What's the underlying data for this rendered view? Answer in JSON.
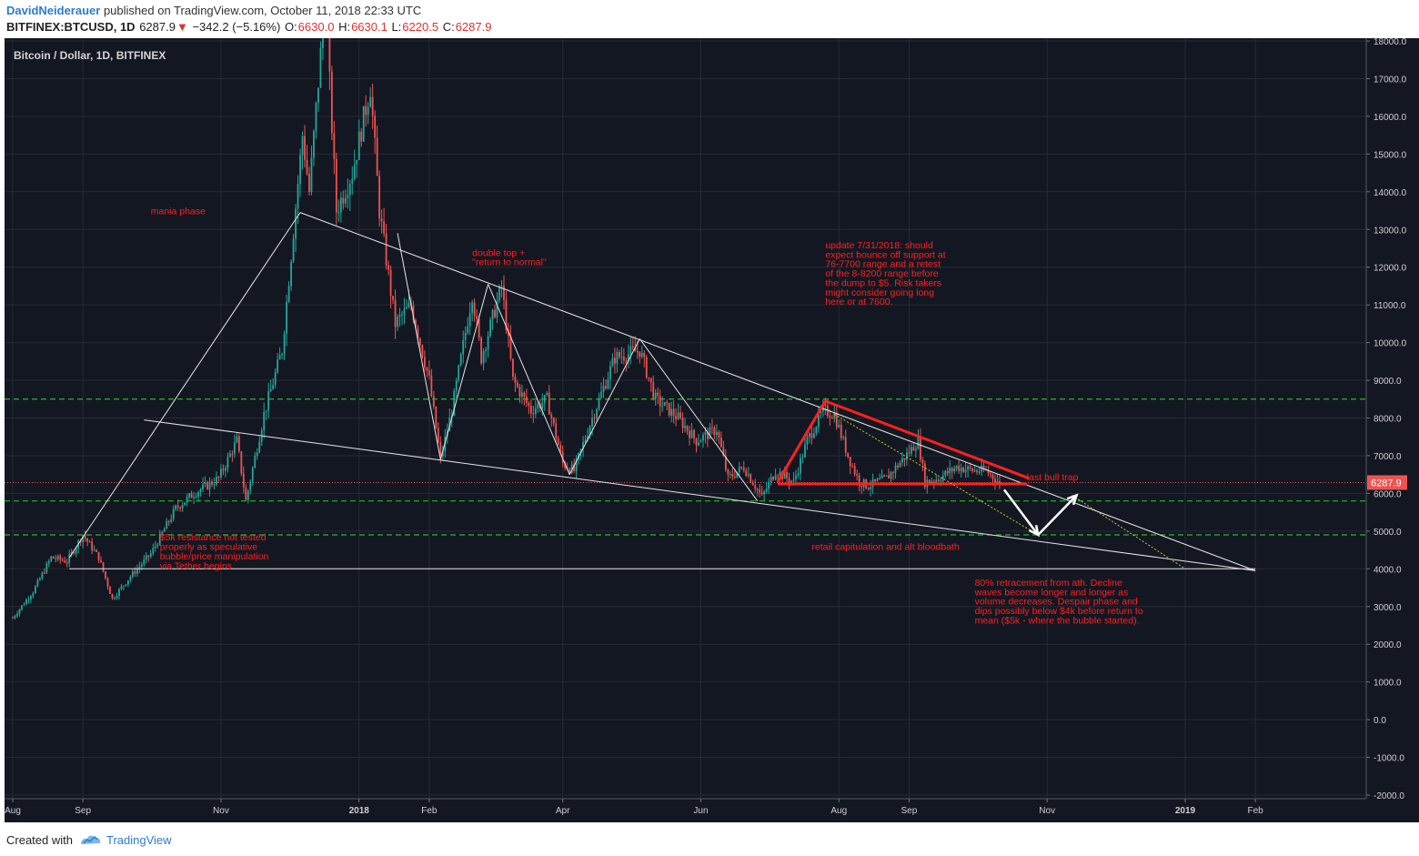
{
  "header": {
    "publisher": "DavidNeiderauer",
    "published_text": "published on TradingView.com, October 11, 2018 22:33 UTC",
    "symbol": "BITFINEX:BTCUSD, 1D",
    "last": "6287.9",
    "change": "−342.2 (−5.16%)",
    "o_label": "O:",
    "o_value": "6630.0",
    "h_label": "H:",
    "h_value": "6630.1",
    "l_label": "L:",
    "l_value": "6220.5",
    "c_label": "C:",
    "c_value": "6287.9"
  },
  "footer": {
    "created_with": "Created with",
    "brand": "TradingView"
  },
  "colors": {
    "background": "#131722",
    "candle_up": "#26a69a",
    "candle_down": "#ef5350",
    "annotation": "#ff2020",
    "support_line": "#22bb22",
    "trend_line": "#e6e6e6",
    "axis_text": "#d0d0d0"
  },
  "chart_data": {
    "type": "candlestick",
    "title": "Bitcoin / Dollar, 1D, BITFINEX",
    "ylim": [
      -2000,
      18000
    ],
    "y_ticks": [
      "18000.0",
      "17000.0",
      "16000.0",
      "15000.0",
      "14000.0",
      "13000.0",
      "12000.0",
      "11000.0",
      "10000.0",
      "9000.0",
      "8000.0",
      "7000.0",
      "6000.0",
      "5000.0",
      "4000.0",
      "3000.0",
      "2000.0",
      "1000.0",
      "0.0",
      "-1000.0",
      "-2000.0"
    ],
    "x_ticks": [
      {
        "label": "Aug",
        "date": "2017-08-01"
      },
      {
        "label": "Sep",
        "date": "2017-09-01"
      },
      {
        "label": "Nov",
        "date": "2017-11-01"
      },
      {
        "label": "2018",
        "date": "2018-01-01"
      },
      {
        "label": "Feb",
        "date": "2018-02-01"
      },
      {
        "label": "Apr",
        "date": "2018-04-01"
      },
      {
        "label": "Jun",
        "date": "2018-06-01"
      },
      {
        "label": "Aug",
        "date": "2018-08-01"
      },
      {
        "label": "Sep",
        "date": "2018-09-01"
      },
      {
        "label": "Nov",
        "date": "2018-11-01"
      },
      {
        "label": "2019",
        "date": "2019-01-01"
      },
      {
        "label": "Feb",
        "date": "2019-02-01"
      }
    ],
    "last_price": "6287.9",
    "price_path": [
      [
        "2017-08-01",
        2700
      ],
      [
        "2017-08-10",
        3400
      ],
      [
        "2017-08-18",
        4300
      ],
      [
        "2017-08-25",
        4200
      ],
      [
        "2017-09-01",
        4900
      ],
      [
        "2017-09-08",
        4300
      ],
      [
        "2017-09-14",
        3200
      ],
      [
        "2017-09-22",
        3800
      ],
      [
        "2017-10-01",
        4400
      ],
      [
        "2017-10-12",
        5600
      ],
      [
        "2017-10-20",
        6000
      ],
      [
        "2017-10-31",
        6400
      ],
      [
        "2017-11-08",
        7400
      ],
      [
        "2017-11-12",
        5800
      ],
      [
        "2017-11-20",
        8100
      ],
      [
        "2017-11-28",
        9800
      ],
      [
        "2017-12-07",
        15500
      ],
      [
        "2017-12-10",
        14000
      ],
      [
        "2017-12-17",
        19100
      ],
      [
        "2017-12-22",
        13500
      ],
      [
        "2017-12-29",
        14500
      ],
      [
        "2018-01-06",
        16800
      ],
      [
        "2018-01-10",
        13500
      ],
      [
        "2018-01-17",
        10500
      ],
      [
        "2018-01-24",
        11000
      ],
      [
        "2018-02-01",
        9000
      ],
      [
        "2018-02-06",
        6900
      ],
      [
        "2018-02-11",
        8200
      ],
      [
        "2018-02-20",
        11300
      ],
      [
        "2018-02-24",
        9600
      ],
      [
        "2018-03-05",
        11500
      ],
      [
        "2018-03-10",
        9000
      ],
      [
        "2018-03-18",
        8200
      ],
      [
        "2018-03-25",
        8500
      ],
      [
        "2018-04-01",
        6800
      ],
      [
        "2018-04-06",
        6600
      ],
      [
        "2018-04-14",
        8000
      ],
      [
        "2018-04-24",
        9600
      ],
      [
        "2018-05-05",
        9800
      ],
      [
        "2018-05-12",
        8500
      ],
      [
        "2018-05-22",
        8000
      ],
      [
        "2018-05-30",
        7400
      ],
      [
        "2018-06-08",
        7700
      ],
      [
        "2018-06-13",
        6400
      ],
      [
        "2018-06-20",
        6700
      ],
      [
        "2018-06-28",
        5900
      ],
      [
        "2018-07-04",
        6600
      ],
      [
        "2018-07-12",
        6300
      ],
      [
        "2018-07-18",
        7400
      ],
      [
        "2018-07-25",
        8200
      ],
      [
        "2018-07-30",
        8100
      ],
      [
        "2018-08-05",
        7000
      ],
      [
        "2018-08-10",
        6300
      ],
      [
        "2018-08-14",
        6200
      ],
      [
        "2018-08-22",
        6400
      ],
      [
        "2018-09-01",
        7100
      ],
      [
        "2018-09-05",
        7400
      ],
      [
        "2018-09-08",
        6300
      ],
      [
        "2018-09-14",
        6400
      ],
      [
        "2018-09-22",
        6700
      ],
      [
        "2018-09-30",
        6600
      ],
      [
        "2018-10-05",
        6600
      ],
      [
        "2018-10-11",
        6287.9
      ]
    ],
    "horizontal_lines": [
      {
        "value": 8500,
        "style": "dashed",
        "color": "green"
      },
      {
        "value": 5800,
        "style": "dashed",
        "color": "green"
      },
      {
        "value": 4900,
        "style": "dashed",
        "color": "green"
      },
      {
        "value": 6287.9,
        "style": "dotted",
        "color": "red",
        "label": "last price"
      }
    ],
    "annotations": [
      {
        "text": "mania phase",
        "date": "2017-10-01",
        "price": 13400
      },
      {
        "text": "double top +",
        "date": "2018-02-20",
        "price": 12300
      },
      {
        "text": "\"return to normal\"",
        "date": "2018-02-20",
        "price": 12050
      },
      {
        "text": "update 7/31/2018: should",
        "date": "2018-07-26",
        "price": 12500
      },
      {
        "text": "expect bounce off support at",
        "date": "2018-07-26",
        "price": 12250
      },
      {
        "text": "76-7700 range and a retest",
        "date": "2018-07-26",
        "price": 12000
      },
      {
        "text": "of the 8-8200 range before",
        "date": "2018-07-26",
        "price": 11750
      },
      {
        "text": "the dump to $5. Risk takers",
        "date": "2018-07-26",
        "price": 11500
      },
      {
        "text": "might consider going long",
        "date": "2018-07-26",
        "price": 11250
      },
      {
        "text": "here or at 7600.",
        "date": "2018-07-26",
        "price": 11000
      },
      {
        "text": "$5k resistance not tested",
        "date": "2017-10-05",
        "price": 4750
      },
      {
        "text": "properly as speculative",
        "date": "2017-10-05",
        "price": 4500
      },
      {
        "text": "bubble/price manipulation",
        "date": "2017-10-05",
        "price": 4250
      },
      {
        "text": "via Tether begins",
        "date": "2017-10-05",
        "price": 4000
      },
      {
        "text": "retail capitulation and alt bloodbath",
        "date": "2018-07-20",
        "price": 4500
      },
      {
        "text": "last bull trap",
        "date": "2018-10-23",
        "price": 6350
      },
      {
        "text": "80% retracement from ath. Decline",
        "date": "2018-09-30",
        "price": 3550
      },
      {
        "text": "waves become longer and longer as",
        "date": "2018-09-30",
        "price": 3300
      },
      {
        "text": "volume decreases. Despair phase and",
        "date": "2018-09-30",
        "price": 3050
      },
      {
        "text": "dips possibly below $4k before return to",
        "date": "2018-09-30",
        "price": 2800
      },
      {
        "text": "mean ($5k - where the bubble started).",
        "date": "2018-09-30",
        "price": 2550
      }
    ],
    "grid": true
  }
}
